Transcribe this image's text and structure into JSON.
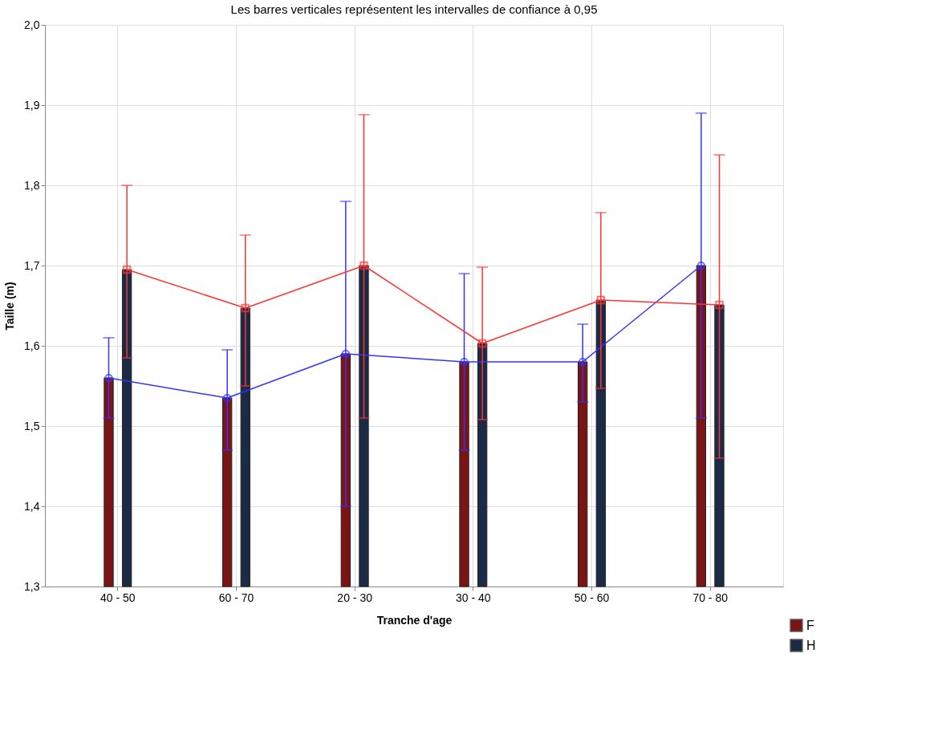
{
  "chart_data": {
    "type": "bar",
    "title": "Les barres verticales représentent les intervalles de confiance à 0,95",
    "xlabel": "Tranche d'age",
    "ylabel": "Taille (m)",
    "categories": [
      "40 - 50",
      "60 - 70",
      "20 - 30",
      "30 - 40",
      "50 - 60",
      "70 - 80"
    ],
    "series": [
      {
        "name": "F",
        "color": "#7b1414",
        "values": [
          1.56,
          1.535,
          1.59,
          1.58,
          1.58,
          1.7
        ]
      },
      {
        "name": "H",
        "color": "#1b2a45",
        "values": [
          1.695,
          1.647,
          1.7,
          1.603,
          1.657,
          1.651
        ]
      },
      {
        "type": "line",
        "color": "#3333ff",
        "marker": "circle",
        "values": [
          1.56,
          1.535,
          1.59,
          1.58,
          1.58,
          1.7
        ],
        "errors": [
          [
            1.51,
            1.61
          ],
          [
            1.47,
            1.595
          ],
          [
            1.4,
            1.78
          ],
          [
            1.47,
            1.69
          ],
          [
            1.53,
            1.627
          ],
          [
            1.51,
            1.89
          ]
        ]
      },
      {
        "type": "line",
        "color": "#ff3333",
        "marker": "square",
        "values": [
          1.695,
          1.647,
          1.7,
          1.603,
          1.657,
          1.651
        ],
        "errors": [
          [
            1.585,
            1.8
          ],
          [
            1.55,
            1.738
          ],
          [
            1.51,
            1.888
          ],
          [
            1.508,
            1.698
          ],
          [
            1.547,
            1.766
          ],
          [
            1.46,
            1.838
          ]
        ]
      }
    ],
    "ylim": [
      1.3,
      2.0
    ],
    "yticks": [
      {
        "value": 1.3,
        "label": "1,3"
      },
      {
        "value": 1.4,
        "label": "1,4"
      },
      {
        "value": 1.5,
        "label": "1,5"
      },
      {
        "value": 1.6,
        "label": "1,6"
      },
      {
        "value": 1.7,
        "label": "1,7"
      },
      {
        "value": 1.8,
        "label": "1,8"
      },
      {
        "value": 1.9,
        "label": "1,9"
      },
      {
        "value": 2.0,
        "label": "2,0"
      }
    ],
    "grid": true,
    "legend": "bottom right",
    "line_style": "solid"
  }
}
